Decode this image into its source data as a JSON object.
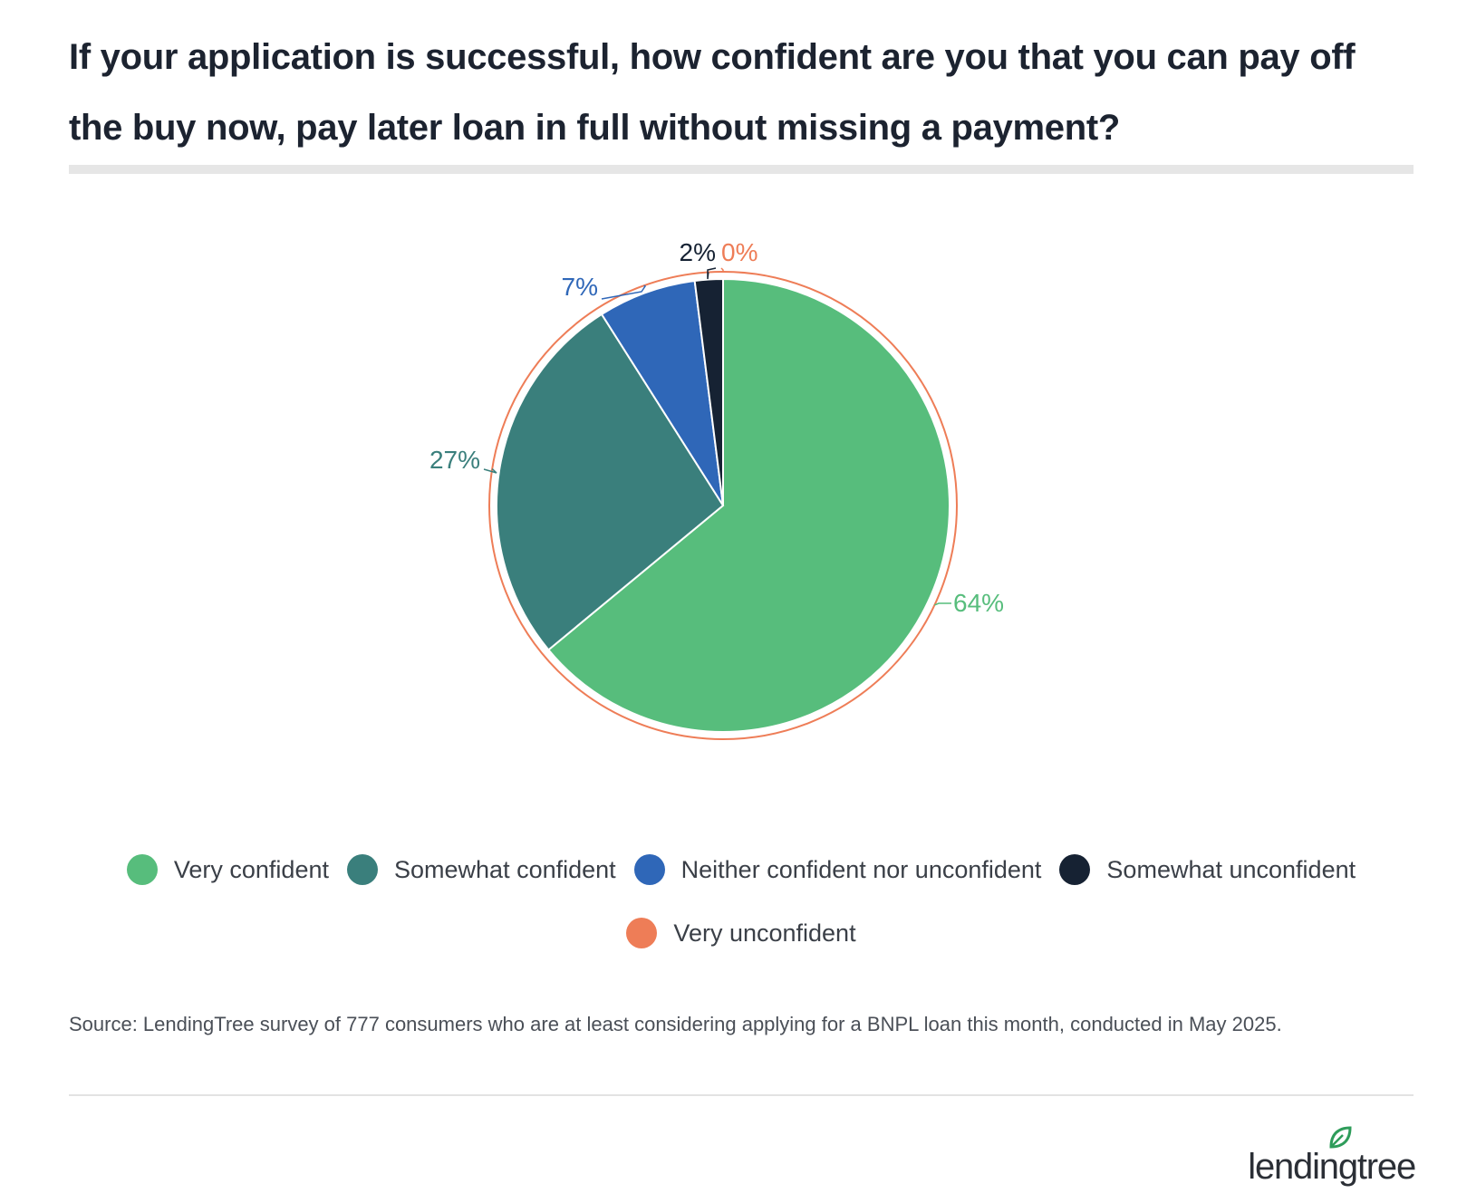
{
  "title": "If your application is successful, how confident are you that you can pay off the buy now, pay later loan in full without missing a payment?",
  "chart_data": {
    "type": "pie",
    "title": "If your application is successful, how confident are you that you can pay off the buy now, pay later loan in full without missing a payment?",
    "categories": [
      "Very confident",
      "Somewhat confident",
      "Neither confident nor unconfident",
      "Somewhat unconfident",
      "Very unconfident"
    ],
    "values": [
      64,
      27,
      7,
      2,
      0
    ],
    "labels": [
      "64%",
      "27%",
      "7%",
      "2%",
      "0%"
    ],
    "colors": [
      "#57bd7c",
      "#3a7f7c",
      "#2f67b8",
      "#162233",
      "#ee7d57"
    ],
    "outline_color": "#ee7d57",
    "legend_position": "bottom",
    "start_angle": "top, clockwise"
  },
  "source": "Source: LendingTree survey of 777 consumers who are at least considering applying for a BNPL loan this month, conducted in May 2025.",
  "brand": {
    "name": "lendingtree",
    "leaf_color": "#2e9c5a"
  }
}
